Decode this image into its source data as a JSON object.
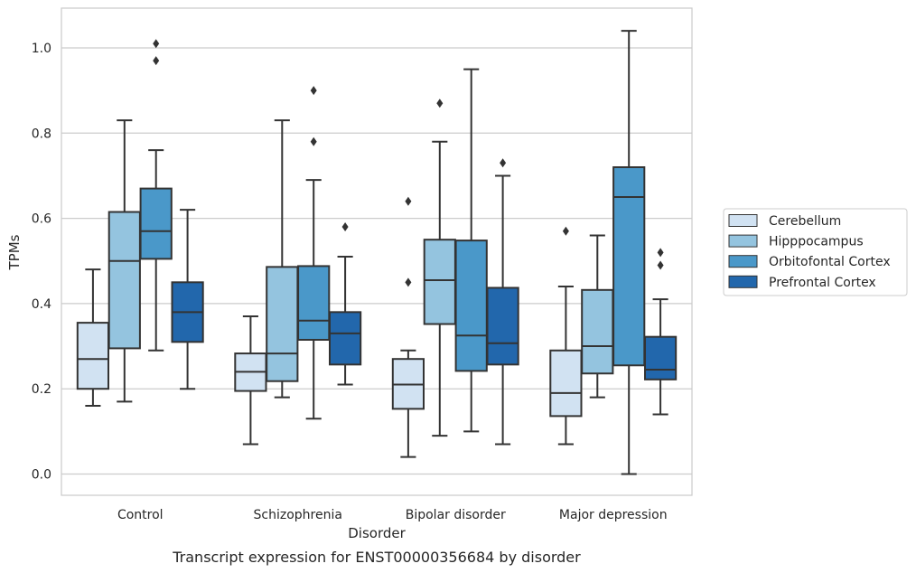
{
  "chart_data": {
    "type": "box",
    "caption": "Transcript expression for ENST00000356684 by disorder",
    "xlabel": "Disorder",
    "ylabel": "TPMs",
    "ylim": [
      -0.05,
      1.09
    ],
    "yticks": [
      "0.0",
      "0.2",
      "0.4",
      "0.6",
      "0.8",
      "1.0"
    ],
    "grid": "horizontal",
    "legend_position": "right",
    "categories": [
      "Control",
      "Schizophrenia",
      "Bipolar disorder",
      "Major depression"
    ],
    "series": [
      {
        "name": "Cerebellum",
        "color": "#d1e2f2",
        "boxes": [
          {
            "whisker_low": 0.16,
            "q1": 0.2,
            "median": 0.27,
            "q3": 0.355,
            "whisker_high": 0.48,
            "outliers": []
          },
          {
            "whisker_low": 0.07,
            "q1": 0.195,
            "median": 0.24,
            "q3": 0.283,
            "whisker_high": 0.37,
            "outliers": []
          },
          {
            "whisker_low": 0.04,
            "q1": 0.153,
            "median": 0.21,
            "q3": 0.27,
            "whisker_high": 0.29,
            "outliers": [
              0.45,
              0.64
            ]
          },
          {
            "whisker_low": 0.07,
            "q1": 0.136,
            "median": 0.19,
            "q3": 0.29,
            "whisker_high": 0.44,
            "outliers": [
              0.57
            ]
          }
        ]
      },
      {
        "name": "Hipppocampus",
        "color": "#94c4df",
        "boxes": [
          {
            "whisker_low": 0.17,
            "q1": 0.295,
            "median": 0.5,
            "q3": 0.615,
            "whisker_high": 0.83,
            "outliers": []
          },
          {
            "whisker_low": 0.18,
            "q1": 0.218,
            "median": 0.283,
            "q3": 0.486,
            "whisker_high": 0.83,
            "outliers": []
          },
          {
            "whisker_low": 0.09,
            "q1": 0.352,
            "median": 0.455,
            "q3": 0.55,
            "whisker_high": 0.78,
            "outliers": [
              0.87
            ]
          },
          {
            "whisker_low": 0.18,
            "q1": 0.236,
            "median": 0.3,
            "q3": 0.432,
            "whisker_high": 0.56,
            "outliers": []
          }
        ]
      },
      {
        "name": "Orbitofontal Cortex",
        "color": "#4a98c9",
        "boxes": [
          {
            "whisker_low": 0.29,
            "q1": 0.505,
            "median": 0.57,
            "q3": 0.67,
            "whisker_high": 0.76,
            "outliers": [
              0.97,
              1.01
            ]
          },
          {
            "whisker_low": 0.13,
            "q1": 0.315,
            "median": 0.36,
            "q3": 0.488,
            "whisker_high": 0.69,
            "outliers": [
              0.78,
              0.9
            ]
          },
          {
            "whisker_low": 0.1,
            "q1": 0.242,
            "median": 0.325,
            "q3": 0.548,
            "whisker_high": 0.95,
            "outliers": []
          },
          {
            "whisker_low": 0.0,
            "q1": 0.255,
            "median": 0.65,
            "q3": 0.72,
            "whisker_high": 1.04,
            "outliers": []
          }
        ]
      },
      {
        "name": "Prefrontal Cortex",
        "color": "#2267ac",
        "boxes": [
          {
            "whisker_low": 0.2,
            "q1": 0.31,
            "median": 0.38,
            "q3": 0.45,
            "whisker_high": 0.62,
            "outliers": []
          },
          {
            "whisker_low": 0.21,
            "q1": 0.257,
            "median": 0.33,
            "q3": 0.38,
            "whisker_high": 0.51,
            "outliers": [
              0.58
            ]
          },
          {
            "whisker_low": 0.07,
            "q1": 0.257,
            "median": 0.307,
            "q3": 0.437,
            "whisker_high": 0.7,
            "outliers": [
              0.73
            ]
          },
          {
            "whisker_low": 0.14,
            "q1": 0.222,
            "median": 0.245,
            "q3": 0.322,
            "whisker_high": 0.41,
            "outliers": [
              0.49,
              0.52
            ]
          }
        ]
      }
    ],
    "colors": {
      "grid": "#cccccc",
      "frame": "#cccccc",
      "line": "#333333",
      "text": "#262626"
    }
  }
}
